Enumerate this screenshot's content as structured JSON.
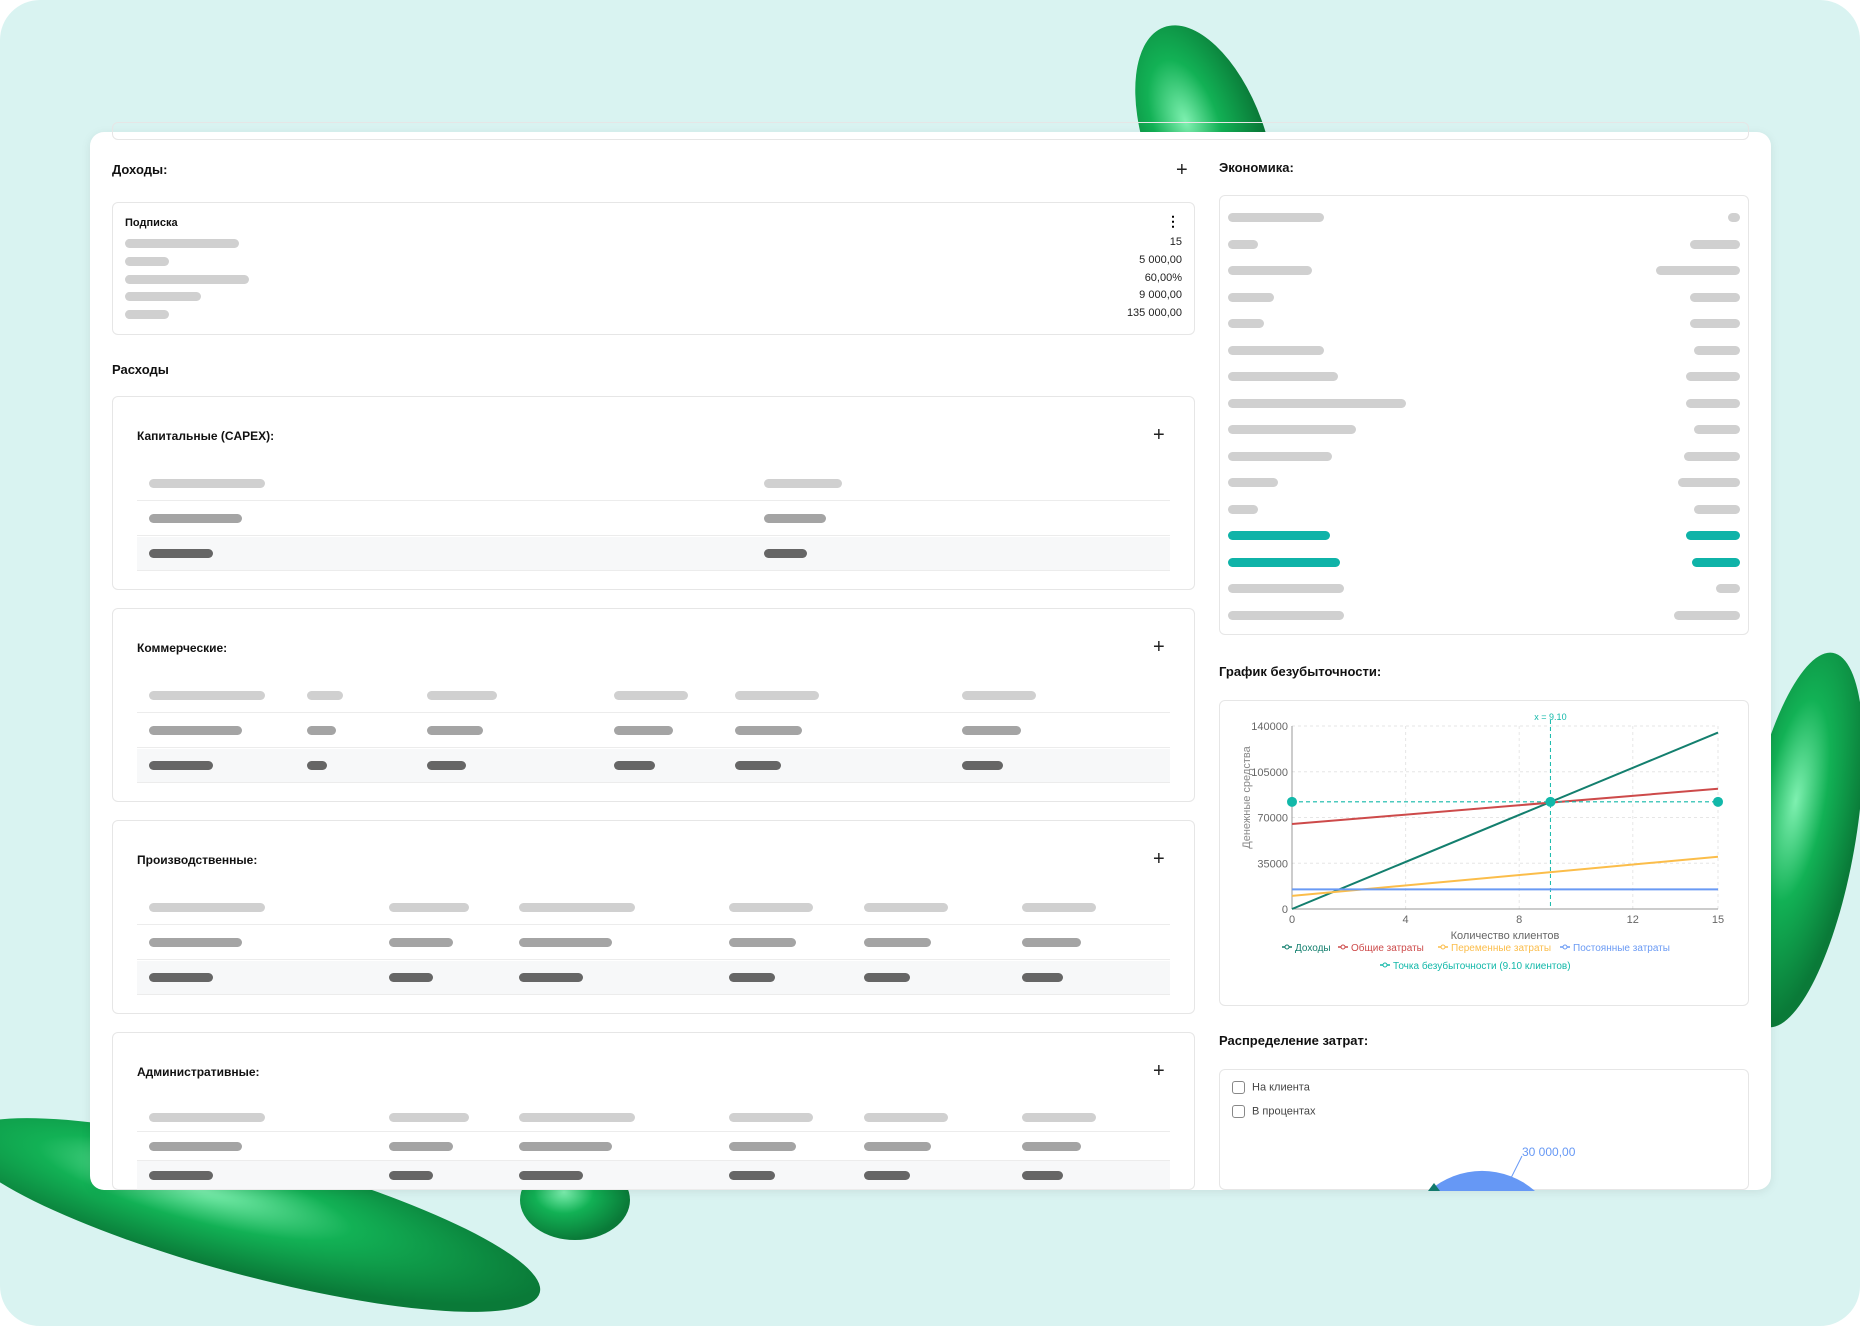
{
  "income": {
    "title": "Доходы:",
    "add_icon": "plus-icon",
    "card": {
      "title": "Подписка",
      "menu_icon": "more-vertical-icon",
      "values": [
        "15",
        "5 000,00",
        "60,00%",
        "9 000,00",
        "135 000,00"
      ]
    }
  },
  "expenses": {
    "title": "Расходы",
    "sections": [
      {
        "title": "Капитальные (CAPEX):"
      },
      {
        "title": "Коммерческие:"
      },
      {
        "title": "Производственные:"
      },
      {
        "title": "Административные:"
      }
    ]
  },
  "economics": {
    "title": "Экономика:"
  },
  "breakeven": {
    "title": "График безубыточности:"
  },
  "distribution": {
    "title": "Распределение затрат:",
    "checkboxes": [
      {
        "label": "На клиента",
        "checked": false
      },
      {
        "label": "В процентах",
        "checked": false
      }
    ],
    "pie_label": "30 000,00",
    "colors": [
      "#6698f5",
      "#127a6d"
    ]
  },
  "chart_data": {
    "type": "line",
    "xlabel": "Количество клиентов",
    "ylabel": "Денежные средства",
    "xlim": [
      0,
      15
    ],
    "ylim": [
      0,
      140000
    ],
    "xticks": [
      "0",
      "4",
      "8",
      "12",
      "15"
    ],
    "yticks": [
      "0",
      "35000",
      "70000",
      "105000",
      "140000"
    ],
    "grid": true,
    "legend": "bottom",
    "series": [
      {
        "name": "Доходы",
        "color": "#137f6e",
        "x": [
          0,
          15
        ],
        "y": [
          0,
          135000
        ]
      },
      {
        "name": "Общие затраты",
        "color": "#cd4a4a",
        "x": [
          0,
          15
        ],
        "y": [
          65000,
          92000
        ]
      },
      {
        "name": "Переменные затраты",
        "color": "#fbbd4a",
        "x": [
          0,
          15
        ],
        "y": [
          10000,
          40000
        ]
      },
      {
        "name": "Постоянные затраты",
        "color": "#6a9af4",
        "x": [
          0,
          15
        ],
        "y": [
          15000,
          15000
        ]
      },
      {
        "name": "Точка безубыточности (9.10 клиентов)",
        "color": "#12b8a9",
        "x": [
          0,
          9.1,
          15
        ],
        "y": [
          82000,
          82000,
          82000
        ]
      }
    ],
    "annotation": "x = 9.10",
    "breakeven_x": 9.1
  }
}
